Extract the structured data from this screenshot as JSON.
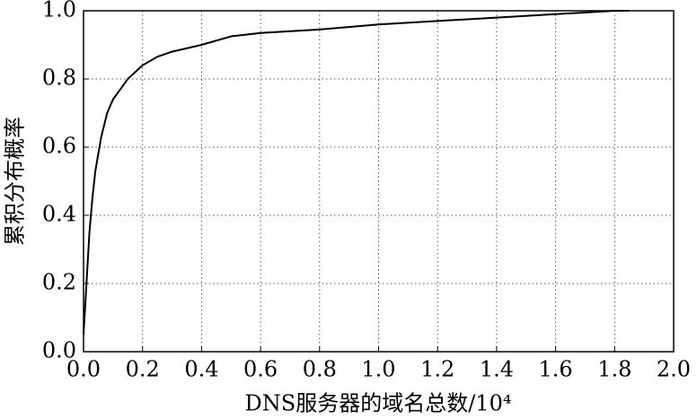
{
  "chart_data": {
    "type": "line",
    "x_label": "DNS服务器的域名总数/10⁴",
    "y_label": "累积分布概率",
    "x": [
      0.0,
      0.01,
      0.02,
      0.03,
      0.04,
      0.06,
      0.08,
      0.1,
      0.15,
      0.2,
      0.25,
      0.3,
      0.4,
      0.5,
      0.6,
      0.8,
      1.0,
      1.2,
      1.4,
      1.6,
      1.8,
      1.85
    ],
    "series": [
      {
        "color": "#000000",
        "values": [
          0.05,
          0.2,
          0.35,
          0.45,
          0.53,
          0.63,
          0.7,
          0.74,
          0.8,
          0.84,
          0.865,
          0.88,
          0.9,
          0.925,
          0.935,
          0.945,
          0.96,
          0.97,
          0.98,
          0.99,
          1.0,
          1.0
        ]
      }
    ],
    "xlim": [
      0,
      2
    ],
    "ylim": [
      0,
      1
    ],
    "xticks": [
      {
        "value": 0,
        "label": "0.0"
      },
      {
        "value": 0.2,
        "label": "0.2"
      },
      {
        "value": 0.4,
        "label": "0.4"
      },
      {
        "value": 0.6,
        "label": "0.6"
      },
      {
        "value": 0.8,
        "label": "0.8"
      },
      {
        "value": 1,
        "label": "1.0"
      },
      {
        "value": 1.2,
        "label": "1.2"
      },
      {
        "value": 1.4,
        "label": "1.4"
      },
      {
        "value": 1.6,
        "label": "1.6"
      },
      {
        "value": 1.8,
        "label": "1.8"
      },
      {
        "value": 2,
        "label": "2.0"
      }
    ],
    "yticks": [
      {
        "value": 0,
        "label": "0.0"
      },
      {
        "value": 0.2,
        "label": "0.2"
      },
      {
        "value": 0.4,
        "label": "0.4"
      },
      {
        "value": 0.6,
        "label": "0.6"
      },
      {
        "value": 0.8,
        "label": "0.8"
      },
      {
        "value": 1,
        "label": "1.0"
      }
    ],
    "grid": true
  }
}
